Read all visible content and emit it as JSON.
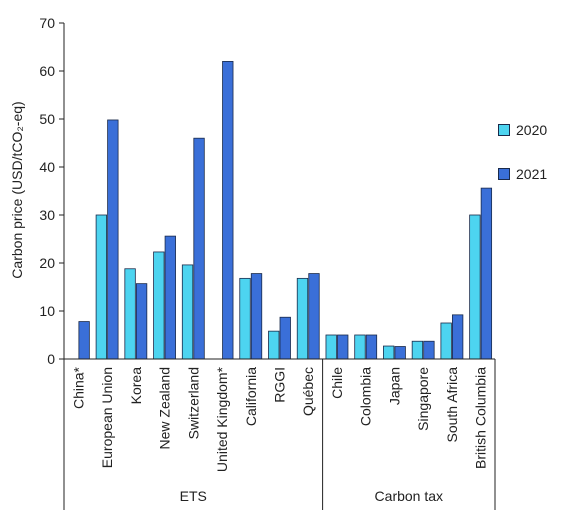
{
  "chart_data": {
    "type": "bar",
    "ylabel": "Carbon price (USD/tCO₂-eq)",
    "ylim": [
      0,
      70
    ],
    "yticks": [
      0,
      10,
      20,
      30,
      40,
      50,
      60,
      70
    ],
    "grid": false,
    "legend_position": "right",
    "categories": [
      "China*",
      "European Union",
      "Korea",
      "New Zealand",
      "Switzerland",
      "United Kingdom*",
      "California",
      "RGGI",
      "Québec",
      "Chile",
      "Colombia",
      "Japan",
      "Singapore",
      "South Africa",
      "British Columbia"
    ],
    "groups": [
      {
        "label": "ETS",
        "count": 9
      },
      {
        "label": "Carbon tax",
        "count": 6
      }
    ],
    "series": [
      {
        "name": "2020",
        "color": "#4dd4f0",
        "values": [
          null,
          30,
          18.8,
          22.3,
          19.6,
          null,
          16.8,
          5.8,
          16.8,
          5,
          5,
          2.7,
          3.7,
          7.5,
          30
        ]
      },
      {
        "name": "2021",
        "color": "#3a6fd8",
        "values": [
          7.8,
          49.8,
          15.7,
          25.6,
          46,
          62,
          17.8,
          8.7,
          17.8,
          5,
          5,
          2.6,
          3.7,
          9.2,
          35.6
        ]
      }
    ]
  }
}
